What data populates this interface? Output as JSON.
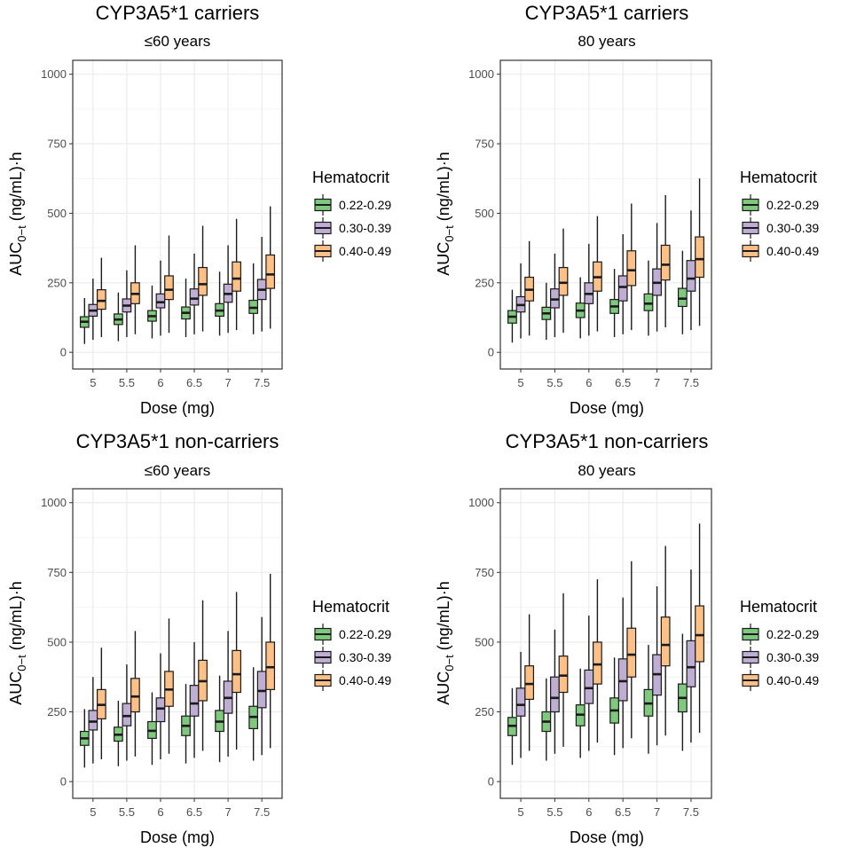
{
  "legend": {
    "title": "Hematocrit",
    "entries": [
      {
        "label": "0.22-0.29",
        "fill": "#7fc97f"
      },
      {
        "label": "0.30-0.39",
        "fill": "#beaed4"
      },
      {
        "label": "0.40-0.49",
        "fill": "#fdc086"
      }
    ]
  },
  "colors": {
    "box_stroke": "#1a1a1a",
    "grid": "#ebebeb",
    "panel_border": "#333333"
  },
  "chart_data": [
    {
      "type": "boxplot",
      "title": "CYP3A5*1 carriers",
      "subtitle": "≤60 years",
      "xlabel": "Dose (mg)",
      "ylabel_main": "AUC",
      "ylabel_sub": "0−t",
      "ylabel_rest": " (ng/mL)·h",
      "ylim": [
        -60,
        1050
      ],
      "yticks": [
        0,
        250,
        500,
        750,
        1000
      ],
      "yticklabels": [
        "0",
        "250",
        "500",
        "750",
        "1000"
      ],
      "categories": [
        "5",
        "5.5",
        "6",
        "6.5",
        "7",
        "7.5"
      ],
      "series": [
        {
          "name": "0.22-0.29",
          "boxes": [
            [
              30,
              90,
              110,
              128,
              195
            ],
            [
              40,
              100,
              118,
              138,
              215
            ],
            [
              50,
              112,
              130,
              150,
              240
            ],
            [
              55,
              120,
              142,
              163,
              265
            ],
            [
              60,
              130,
              150,
              175,
              290
            ],
            [
              65,
              140,
              160,
              187,
              320
            ]
          ]
        },
        {
          "name": "0.30-0.39",
          "boxes": [
            [
              45,
              130,
              150,
              172,
              265
            ],
            [
              55,
              145,
              168,
              192,
              295
            ],
            [
              60,
              160,
              180,
              210,
              330
            ],
            [
              65,
              170,
              193,
              228,
              355
            ],
            [
              70,
              180,
              210,
              245,
              385
            ],
            [
              75,
              190,
              225,
              262,
              415
            ]
          ]
        },
        {
          "name": "0.40-0.49",
          "boxes": [
            [
              55,
              155,
              185,
              225,
              340
            ],
            [
              65,
              175,
              210,
              250,
              385
            ],
            [
              70,
              190,
              225,
              275,
              420
            ],
            [
              75,
              205,
              245,
              305,
              455
            ],
            [
              80,
              220,
              265,
              325,
              480
            ],
            [
              85,
              230,
              280,
              350,
              525
            ]
          ]
        }
      ]
    },
    {
      "type": "boxplot",
      "title": "CYP3A5*1 carriers",
      "subtitle": "80 years",
      "xlabel": "Dose (mg)",
      "ylabel_main": "AUC",
      "ylabel_sub": "0−t",
      "ylabel_rest": " (ng/mL)·h",
      "ylim": [
        -60,
        1050
      ],
      "yticks": [
        0,
        250,
        500,
        750,
        1000
      ],
      "yticklabels": [
        "0",
        "250",
        "500",
        "750",
        "1000"
      ],
      "categories": [
        "5",
        "5.5",
        "6",
        "6.5",
        "7",
        "7.5"
      ],
      "series": [
        {
          "name": "0.22-0.29",
          "boxes": [
            [
              35,
              105,
              128,
              150,
              225
            ],
            [
              45,
              118,
              140,
              162,
              250
            ],
            [
              50,
              125,
              150,
              177,
              270
            ],
            [
              55,
              140,
              165,
              190,
              300
            ],
            [
              60,
              150,
              175,
              210,
              330
            ],
            [
              65,
              165,
              193,
              230,
              365
            ]
          ]
        },
        {
          "name": "0.30-0.39",
          "boxes": [
            [
              50,
              145,
              170,
              200,
              320
            ],
            [
              55,
              160,
              190,
              228,
              355
            ],
            [
              60,
              175,
              210,
              250,
              390
            ],
            [
              65,
              185,
              235,
              275,
              425
            ],
            [
              75,
              205,
              250,
              300,
              465
            ],
            [
              80,
              220,
              265,
              330,
              510
            ]
          ]
        },
        {
          "name": "0.40-0.49",
          "boxes": [
            [
              60,
              185,
              225,
              270,
              400
            ],
            [
              70,
              205,
              250,
              305,
              445
            ],
            [
              75,
              220,
              270,
              325,
              490
            ],
            [
              80,
              240,
              295,
              365,
              535
            ],
            [
              90,
              260,
              315,
              385,
              565
            ],
            [
              95,
              270,
              335,
              415,
              625
            ]
          ]
        }
      ]
    },
    {
      "type": "boxplot",
      "title": "CYP3A5*1 non-carriers",
      "subtitle": "≤60 years",
      "xlabel": "Dose (mg)",
      "ylabel_main": "AUC",
      "ylabel_sub": "0−t",
      "ylabel_rest": " (ng/mL)·h",
      "ylim": [
        -60,
        1050
      ],
      "yticks": [
        0,
        250,
        500,
        750,
        1000
      ],
      "yticklabels": [
        "0",
        "250",
        "500",
        "750",
        "1000"
      ],
      "categories": [
        "5",
        "5.5",
        "6",
        "6.5",
        "7",
        "7.5"
      ],
      "series": [
        {
          "name": "0.22-0.29",
          "boxes": [
            [
              50,
              130,
              155,
              180,
              260
            ],
            [
              55,
              145,
              168,
              195,
              290
            ],
            [
              60,
              155,
              182,
              215,
              320
            ],
            [
              65,
              165,
              200,
              235,
              350
            ],
            [
              70,
              180,
              215,
              255,
              380
            ],
            [
              75,
              190,
              232,
              270,
              410
            ]
          ]
        },
        {
          "name": "0.30-0.39",
          "boxes": [
            [
              65,
              185,
              215,
              255,
              375
            ],
            [
              75,
              200,
              235,
              280,
              420
            ],
            [
              80,
              215,
              262,
              300,
              460
            ],
            [
              85,
              235,
              280,
              345,
              500
            ],
            [
              90,
              245,
              300,
              360,
              540
            ],
            [
              95,
              265,
              325,
              395,
              590
            ]
          ]
        },
        {
          "name": "0.40-0.49",
          "boxes": [
            [
              80,
              225,
              275,
              330,
              480
            ],
            [
              90,
              250,
              305,
              370,
              540
            ],
            [
              100,
              270,
              330,
              395,
              585
            ],
            [
              110,
              290,
              360,
              435,
              650
            ],
            [
              115,
              320,
              385,
              470,
              680
            ],
            [
              120,
              330,
              410,
              500,
              745
            ]
          ]
        }
      ]
    },
    {
      "type": "boxplot",
      "title": "CYP3A5*1 non-carriers",
      "subtitle": "80 years",
      "xlabel": "Dose (mg)",
      "ylabel_main": "AUC",
      "ylabel_sub": "0−t",
      "ylabel_rest": " (ng/mL)·h",
      "ylim": [
        -60,
        1050
      ],
      "yticks": [
        0,
        250,
        500,
        750,
        1000
      ],
      "yticklabels": [
        "0",
        "250",
        "500",
        "750",
        "1000"
      ],
      "categories": [
        "5",
        "5.5",
        "6",
        "6.5",
        "7",
        "7.5"
      ],
      "series": [
        {
          "name": "0.22-0.29",
          "boxes": [
            [
              60,
              165,
              200,
              230,
              335
            ],
            [
              75,
              180,
              215,
              250,
              370
            ],
            [
              85,
              200,
              240,
              275,
              405
            ],
            [
              95,
              210,
              255,
              300,
              445
            ],
            [
              100,
              235,
              280,
              330,
              490
            ],
            [
              110,
              250,
              300,
              350,
              530
            ]
          ]
        },
        {
          "name": "0.30-0.39",
          "boxes": [
            [
              85,
              235,
              275,
              335,
              465
            ],
            [
              100,
              250,
              300,
              375,
              545
            ],
            [
              110,
              280,
              335,
              400,
              595
            ],
            [
              120,
              290,
              360,
              440,
              660
            ],
            [
              130,
              310,
              385,
              455,
              700
            ],
            [
              140,
              340,
              410,
              505,
              760
            ]
          ]
        },
        {
          "name": "0.40-0.49",
          "boxes": [
            [
              110,
              295,
              350,
              415,
              600
            ],
            [
              125,
              320,
              380,
              450,
              675
            ],
            [
              140,
              350,
              420,
              500,
              725
            ],
            [
              155,
              375,
              455,
              550,
              790
            ],
            [
              165,
              415,
              490,
              590,
              845
            ],
            [
              175,
              430,
              525,
              630,
              925
            ]
          ]
        }
      ]
    }
  ]
}
